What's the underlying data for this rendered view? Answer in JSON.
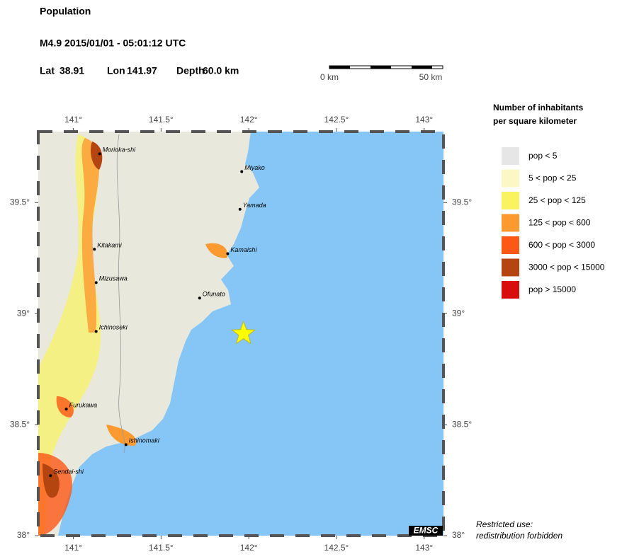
{
  "header": {
    "title": "Population",
    "event": "M4.9  2015/01/01 - 05:01:12 UTC",
    "lat_label": "Lat",
    "lat": 38.91,
    "lon_label": "Lon",
    "lon": 141.97,
    "depth_label": "Depth",
    "depth": "60.0 km"
  },
  "scale_bar": {
    "start": "0 km",
    "end": "50 km"
  },
  "map": {
    "xlim": [
      140.8,
      143.11
    ],
    "ylim": [
      38,
      39.82
    ],
    "xticks": [
      {
        "value": 141,
        "label": "141°"
      },
      {
        "value": 141.5,
        "label": "141.5°"
      },
      {
        "value": 142,
        "label": "142°"
      },
      {
        "value": 142.5,
        "label": "142.5°"
      },
      {
        "value": 143,
        "label": "143°"
      }
    ],
    "yticks": [
      {
        "value": 38,
        "label": "38°"
      },
      {
        "value": 38.5,
        "label": "38.5°"
      },
      {
        "value": 39,
        "label": "39°"
      },
      {
        "value": 39.5,
        "label": "39.5°"
      }
    ]
  },
  "cities": [
    {
      "name": "Morioka-shi",
      "lon": 141.15,
      "lat": 39.72
    },
    {
      "name": "Miyako",
      "lon": 141.96,
      "lat": 39.64
    },
    {
      "name": "Yamada",
      "lon": 141.95,
      "lat": 39.47
    },
    {
      "name": "Kamaishi",
      "lon": 141.88,
      "lat": 39.27
    },
    {
      "name": "Kitakami",
      "lon": 141.12,
      "lat": 39.29
    },
    {
      "name": "Mizusawa",
      "lon": 141.13,
      "lat": 39.14
    },
    {
      "name": "Ofunato",
      "lon": 141.72,
      "lat": 39.07
    },
    {
      "name": "Ichinoseki",
      "lon": 141.13,
      "lat": 38.92
    },
    {
      "name": "Furukawa",
      "lon": 140.96,
      "lat": 38.57
    },
    {
      "name": "Ishinomaki",
      "lon": 141.3,
      "lat": 38.41
    },
    {
      "name": "Sendai-shi",
      "lon": 140.87,
      "lat": 38.27
    }
  ],
  "legend": {
    "title_line1": "Number of inhabitants",
    "title_line2": "per square kilometer",
    "items": [
      {
        "label": "pop < 5",
        "color": "#e6e6e6"
      },
      {
        "label": "5 < pop < 25",
        "color": "#fbf8c5"
      },
      {
        "label": "25 < pop < 125",
        "color": "#f9f45e"
      },
      {
        "label": "125 < pop < 600",
        "color": "#fc9a30"
      },
      {
        "label": "600 < pop < 3000",
        "color": "#fd5815"
      },
      {
        "label": "3000 < pop < 15000",
        "color": "#b44511"
      },
      {
        "label": "pop > 15000",
        "color": "#d90d0d"
      }
    ]
  },
  "badge": "EMSC",
  "note_line1": "Restricted use:",
  "note_line2": "redistribution forbidden"
}
